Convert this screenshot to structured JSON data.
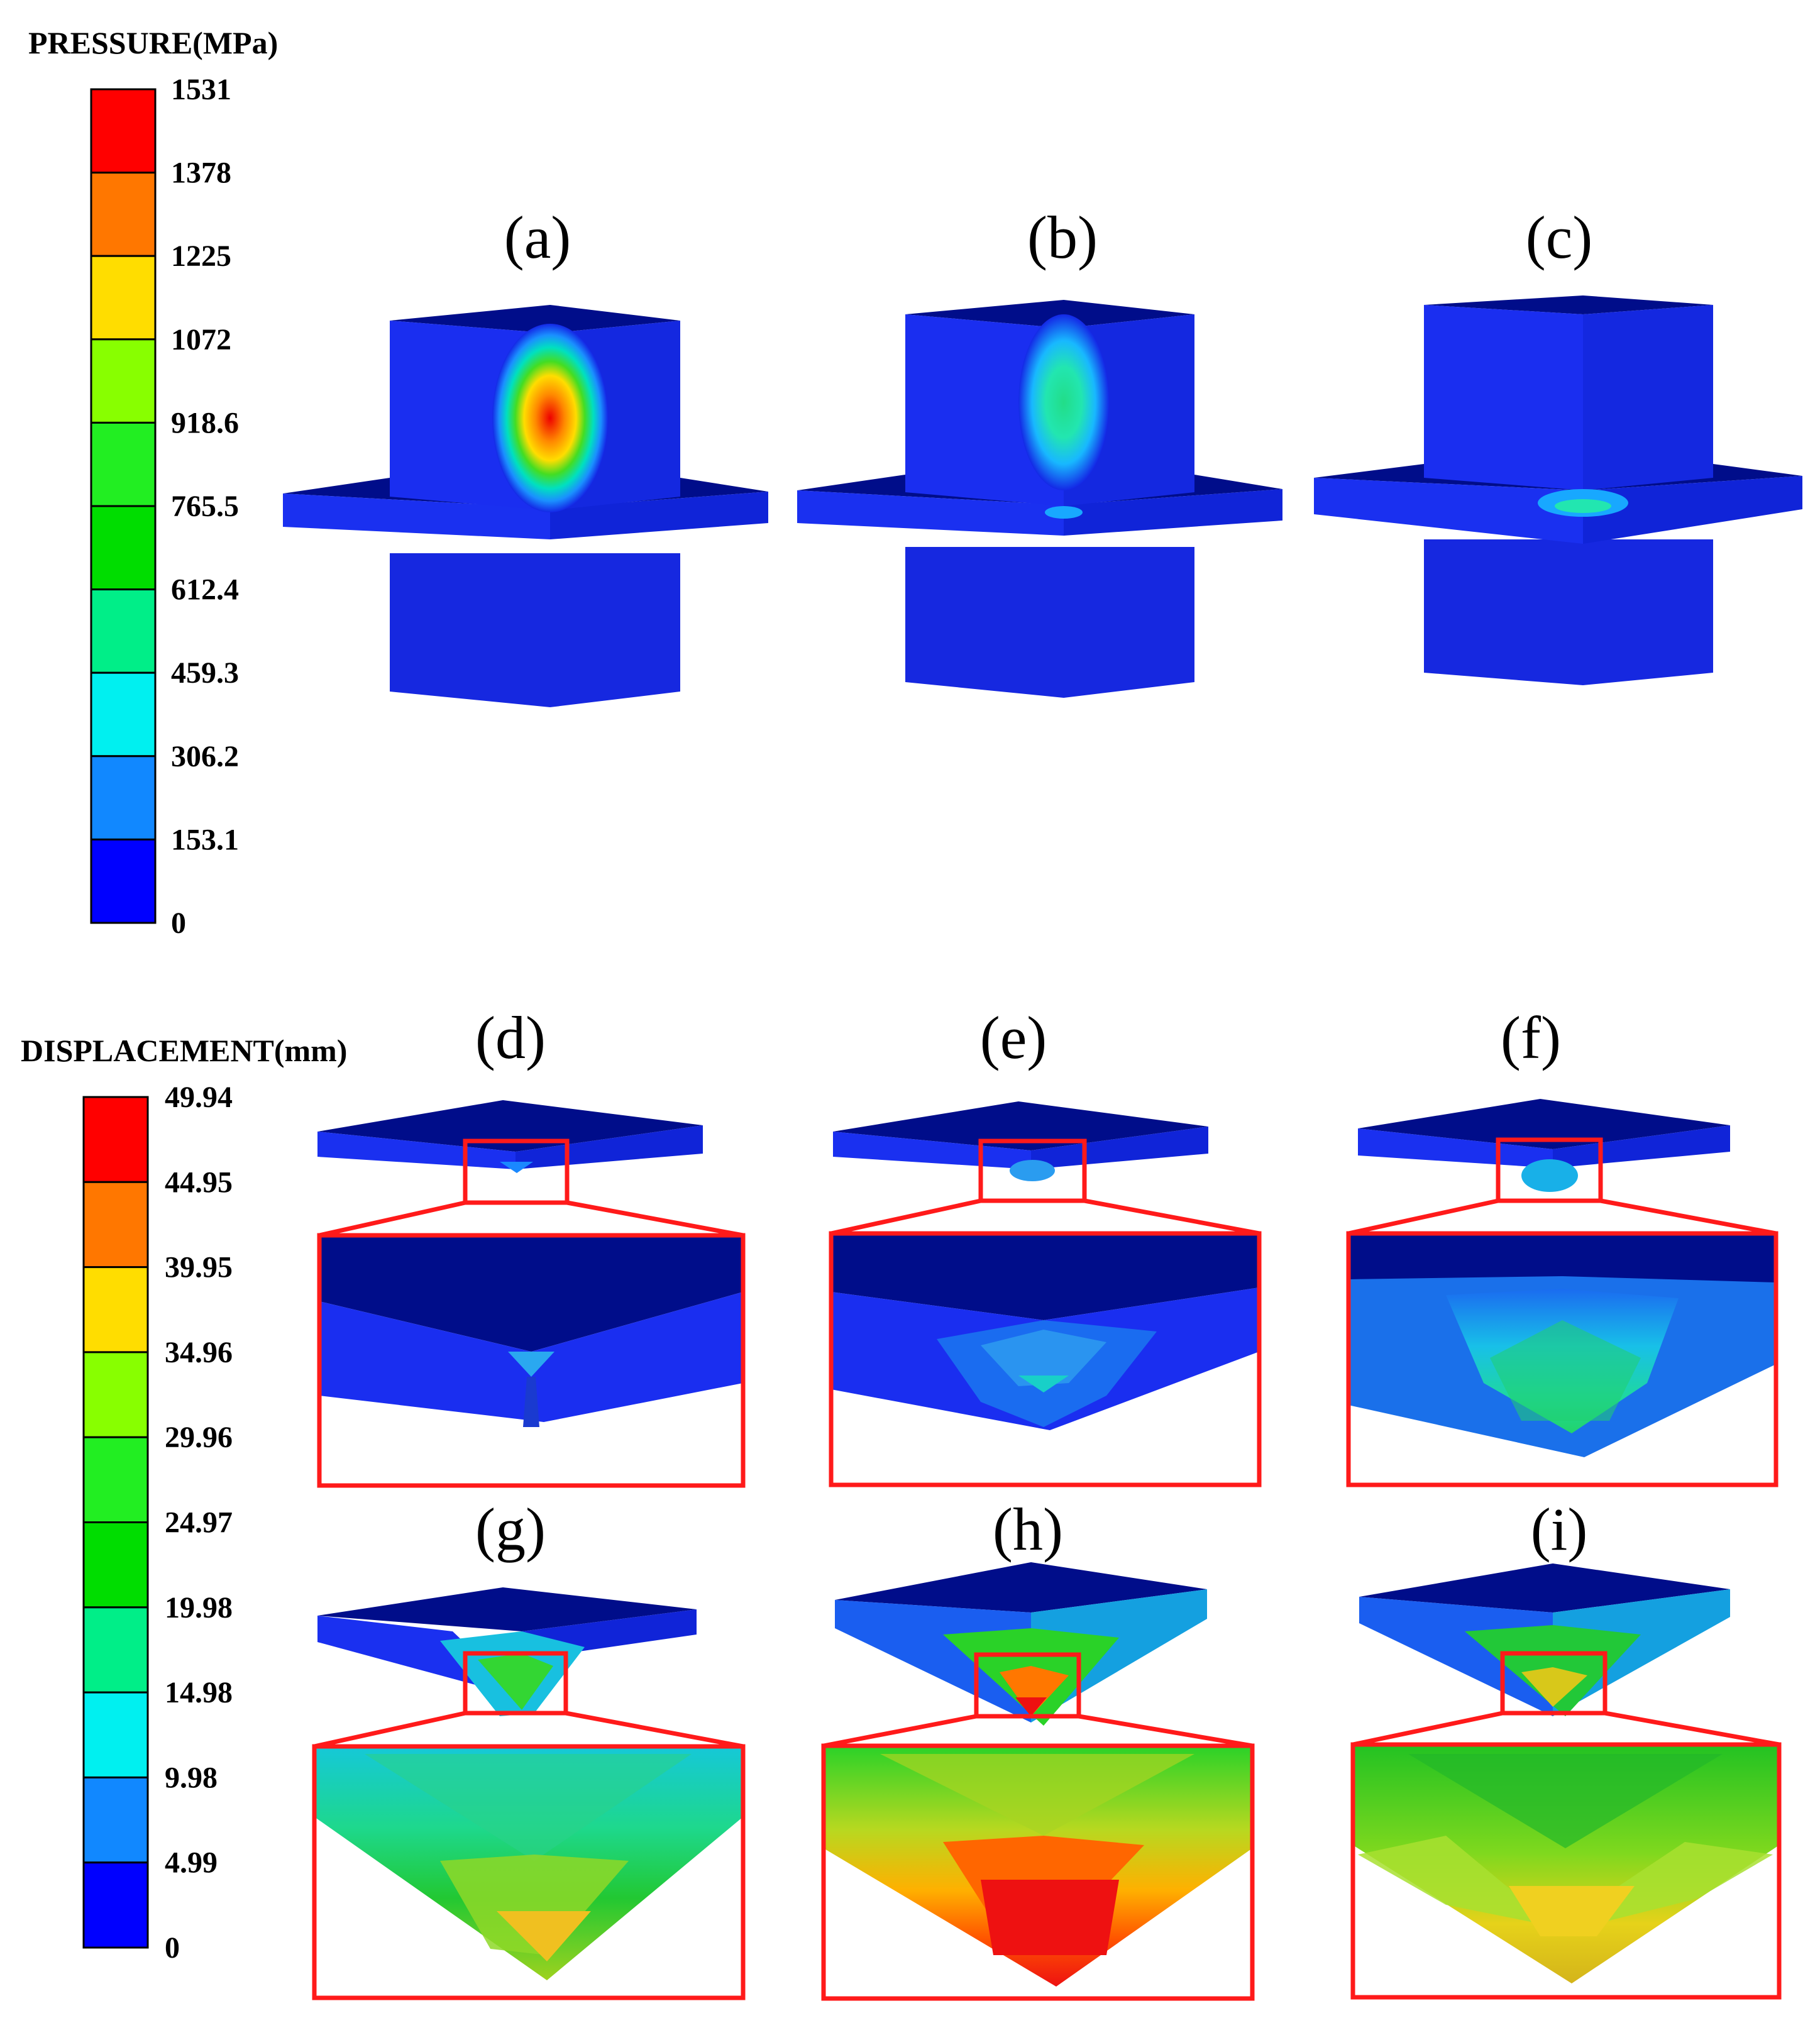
{
  "pressure_legend": {
    "title": "PRESSURE(MPa)",
    "ticks": [
      "1531",
      "1378",
      "1225",
      "1072",
      "918.6",
      "765.5",
      "612.4",
      "459.3",
      "306.2",
      "153.1",
      "0"
    ],
    "colors": [
      "#ff0000",
      "#ff7700",
      "#ffdd00",
      "#88ff00",
      "#22ee22",
      "#00dd00",
      "#00ee88",
      "#00f0f0",
      "#1188ff",
      "#0000ff"
    ]
  },
  "displacement_legend": {
    "title": "DISPLACEMENT(mm)",
    "ticks": [
      "49.94",
      "44.95",
      "39.95",
      "34.96",
      "29.96",
      "24.97",
      "19.98",
      "14.98",
      "9.98",
      "4.99",
      "0"
    ],
    "colors": [
      "#ff0000",
      "#ff7700",
      "#ffdd00",
      "#88ff00",
      "#22ee22",
      "#00dd00",
      "#00ee88",
      "#00f0f0",
      "#1188ff",
      "#0000ff"
    ]
  },
  "panels": {
    "a": "(a)",
    "b": "(b)",
    "c": "(c)",
    "d": "(d)",
    "e": "(e)",
    "f": "(f)",
    "g": "(g)",
    "h": "(h)",
    "i": "(i)"
  },
  "colors": {
    "mesh_blue": "#1428e6",
    "mesh_dark": "#000a78",
    "mesh_side": "#0a1ccc",
    "zoom_frame": "#ff1a1a"
  }
}
